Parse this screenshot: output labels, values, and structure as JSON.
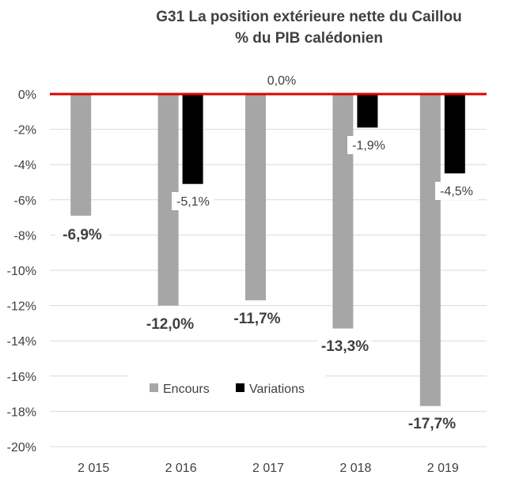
{
  "chart_data": {
    "type": "bar",
    "title": "G31   La position extérieure nette du Caillou",
    "subtitle": "% du PIB calédonien",
    "categories": [
      "2 015",
      "2 016",
      "2 017",
      "2 018",
      "2 019"
    ],
    "series": [
      {
        "name": "Encours",
        "values": [
          -6.9,
          -12.0,
          -11.7,
          -13.3,
          -17.7
        ],
        "color": "#a6a6a6",
        "labels": [
          "-6,9%",
          "-12,0%",
          "-11,7%",
          "-13,3%",
          "-17,7%"
        ]
      },
      {
        "name": "Variations",
        "values": [
          null,
          -5.1,
          0.0,
          -1.9,
          -4.5
        ],
        "color": "#000000",
        "labels": [
          "",
          "-5,1%",
          "0,0%",
          "-1,9%",
          "-4,5%"
        ]
      }
    ],
    "ylim": [
      -20,
      0
    ],
    "yticks": [
      0,
      -2,
      -4,
      -6,
      -8,
      -10,
      -12,
      -14,
      -16,
      -18,
      -20
    ],
    "ytick_labels": [
      "0%",
      "-2%",
      "-4%",
      "-6%",
      "-8%",
      "-10%",
      "-12%",
      "-14%",
      "-16%",
      "-18%",
      "-20%"
    ],
    "zero_line_color": "#e00000",
    "grid": true,
    "legend_position": "bottom-center-inside"
  }
}
